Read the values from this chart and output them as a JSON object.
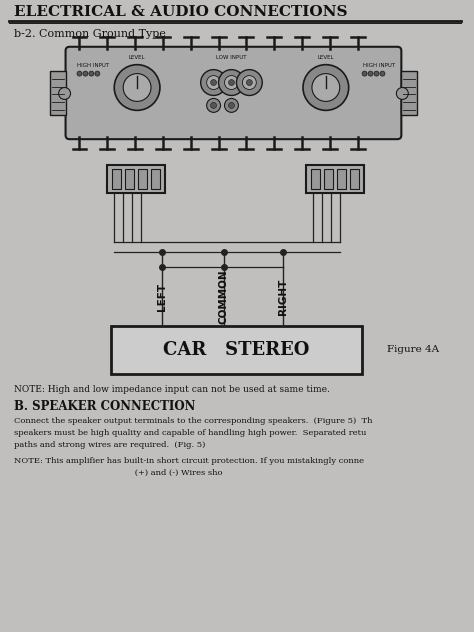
{
  "title": "ELECTRICAL & AUDIO CONNECTIONS",
  "subtitle": "b-2. Common Ground Type",
  "page_bg": "#c0bfbd",
  "note_text": "NOTE: High and low impedance input can not be used at same time.",
  "section_title": "B. SPEAKER CONNECTION",
  "body_text1": "Connect the speaker output terminals to the corresponding speakers.  (Figure 5)  Th",
  "body_text2": "speakers must be high quality and capable of handling high power.  Separated retu",
  "body_text3": "paths and strong wires are required.  (Fig. 5)",
  "body_text4": "NOTE: This amplifier has built-in short circuit protection. If you mistakingly conne",
  "body_text5": "                                              (+) and (-) Wires sho",
  "figure_label": "Figure 4A",
  "car_stereo_label": "CAR   STEREO",
  "left_label": "LEFT",
  "common_label": "COMMON",
  "right_label": "RIGHT",
  "line_color": "#1a1a1a",
  "text_color": "#111111",
  "wire_color": "#222222",
  "amp_color": "#aaaaaa",
  "amp_dark": "#888888"
}
